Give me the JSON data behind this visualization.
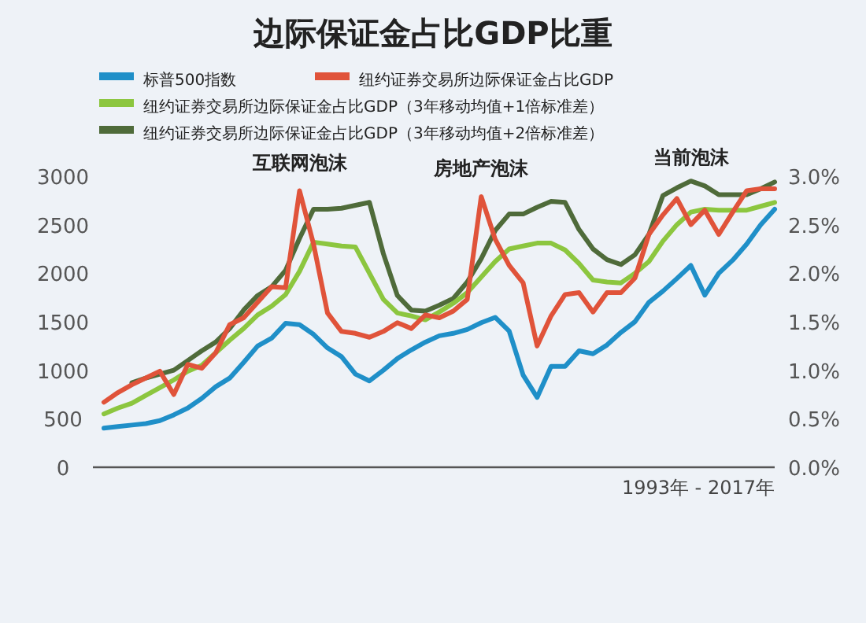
{
  "chart_data": {
    "type": "line",
    "title": "边际保证金占比GDP比重",
    "xlabel": "1993年 - 2017年",
    "categories": [
      null,
      null,
      null,
      null,
      null,
      null,
      null,
      null,
      null,
      null,
      null,
      null,
      null,
      null,
      null,
      null,
      null,
      null,
      null,
      null,
      null,
      null,
      null,
      null,
      null,
      null,
      null,
      null,
      null,
      null,
      null,
      null,
      null,
      null,
      null,
      null,
      null,
      null,
      null,
      null,
      null,
      null,
      null,
      null,
      null,
      null,
      null,
      null,
      null
    ],
    "ylim": [
      0,
      3000
    ],
    "yticks": [
      0,
      500,
      1000,
      1500,
      2000,
      2500,
      3000
    ],
    "y2lim": [
      0,
      3.0
    ],
    "y2ticks": [
      {
        "value": 0,
        "label": "0.0%"
      },
      {
        "value": 0.5,
        "label": "0.5%"
      },
      {
        "value": 1,
        "label": "1.0%"
      },
      {
        "value": 1.5,
        "label": "1.5%"
      },
      {
        "value": 2,
        "label": "2.0%"
      },
      {
        "value": 2.5,
        "label": "2.5%"
      },
      {
        "value": 3,
        "label": "3.0%"
      }
    ],
    "legend": "top",
    "marker": "none",
    "line_style": "solid",
    "series": [
      {
        "name": "标普500指数",
        "color": "#1f8fc8",
        "values": [
          403,
          420,
          435,
          450,
          480,
          540,
          610,
          710,
          830,
          919,
          1080,
          1250,
          1330,
          1484,
          1470,
          1370,
          1230,
          1140,
          960,
          890,
          1000,
          1120,
          1210,
          1290,
          1355,
          1380,
          1420,
          1490,
          1545,
          1403,
          950,
          720,
          1040,
          1040,
          1200,
          1170,
          1260,
          1390,
          1500,
          1700,
          1815,
          1945,
          2080,
          1774,
          2000,
          2135,
          2300,
          2500,
          2660
        ]
      },
      {
        "name": "纽约证券交易所边际保证金占比GDP",
        "color": "#e0533a",
        "axis": "y2",
        "values": [
          0.67,
          0.77,
          0.85,
          0.92,
          0.99,
          0.75,
          1.06,
          1.02,
          1.18,
          1.47,
          1.54,
          1.7,
          1.86,
          1.85,
          2.85,
          2.3,
          1.59,
          1.4,
          1.38,
          1.34,
          1.4,
          1.49,
          1.43,
          1.57,
          1.54,
          1.61,
          1.73,
          2.79,
          2.35,
          2.08,
          1.9,
          1.25,
          1.56,
          1.78,
          1.8,
          1.6,
          1.8,
          1.8,
          1.95,
          2.4,
          2.6,
          2.77,
          2.5,
          2.65,
          2.4,
          2.63,
          2.85,
          2.87,
          2.87
        ]
      },
      {
        "name": "纽约证券交易所边际保证金占比GDP（3年移动均值+1倍标准差）",
        "color": "#8cc63f",
        "axis": "y2",
        "values": [
          0.55,
          0.61,
          0.66,
          0.74,
          0.82,
          0.9,
          0.99,
          1.05,
          1.18,
          1.31,
          1.43,
          1.57,
          1.66,
          1.78,
          2.02,
          2.32,
          2.3,
          2.28,
          2.27,
          2.0,
          1.73,
          1.59,
          1.56,
          1.52,
          1.6,
          1.69,
          1.8,
          1.96,
          2.12,
          2.25,
          2.28,
          2.31,
          2.31,
          2.24,
          2.1,
          1.93,
          1.91,
          1.9,
          2.0,
          2.12,
          2.33,
          2.5,
          2.63,
          2.66,
          2.65,
          2.65,
          2.65,
          2.69,
          2.73
        ]
      },
      {
        "name": "纽约证券交易所边际保证金占比GDP（3年移动均值+2倍标准差）",
        "color": "#4f6b3a",
        "axis": "y2",
        "values": [
          null,
          null,
          0.87,
          0.92,
          0.96,
          1.0,
          1.1,
          1.2,
          1.29,
          1.43,
          1.62,
          1.77,
          1.86,
          2.03,
          2.36,
          2.66,
          2.66,
          2.67,
          2.7,
          2.73,
          2.2,
          1.77,
          1.62,
          1.61,
          1.67,
          1.74,
          1.91,
          2.15,
          2.44,
          2.61,
          2.61,
          2.68,
          2.74,
          2.73,
          2.45,
          2.25,
          2.14,
          2.09,
          2.19,
          2.4,
          2.8,
          2.88,
          2.95,
          2.9,
          2.81,
          2.81,
          2.81,
          2.87,
          2.94
        ]
      }
    ],
    "annotations": [
      {
        "text": "互联网泡沫",
        "y": 2850
      },
      {
        "text": "房地产泡沫",
        "y": 2790
      },
      {
        "text": "当前泡沫",
        "y": 2950
      }
    ]
  }
}
